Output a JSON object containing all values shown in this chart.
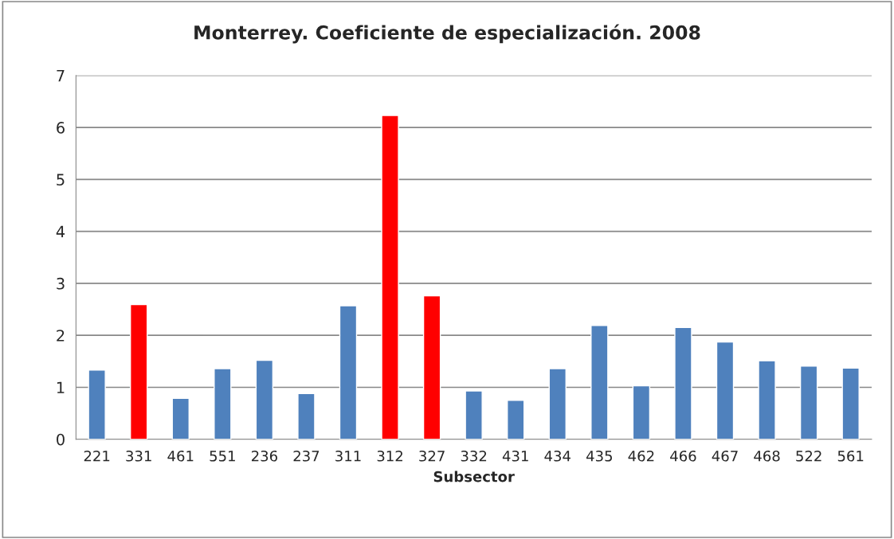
{
  "chart_data": {
    "type": "bar",
    "title": "Monterrey. Coeficiente de especialización. 2008",
    "xlabel": "Subsector",
    "categories": [
      "221",
      "331",
      "461",
      "551",
      "236",
      "237",
      "311",
      "312",
      "327",
      "332",
      "431",
      "434",
      "435",
      "462",
      "466",
      "467",
      "468",
      "522",
      "561"
    ],
    "values": [
      1.33,
      2.59,
      0.79,
      1.36,
      1.52,
      0.88,
      2.57,
      6.23,
      2.76,
      0.93,
      0.75,
      1.36,
      2.19,
      1.03,
      2.15,
      1.87,
      1.51,
      1.41,
      1.37
    ],
    "colors": [
      "#4f81bd",
      "#ff0000",
      "#4f81bd",
      "#4f81bd",
      "#4f81bd",
      "#4f81bd",
      "#4f81bd",
      "#ff0000",
      "#ff0000",
      "#4f81bd",
      "#4f81bd",
      "#4f81bd",
      "#4f81bd",
      "#4f81bd",
      "#4f81bd",
      "#4f81bd",
      "#4f81bd",
      "#4f81bd",
      "#4f81bd"
    ],
    "ylim": [
      0,
      7
    ],
    "yticks": [
      0,
      1,
      2,
      3,
      4,
      5,
      6,
      7
    ],
    "grid": "y",
    "legend": false
  }
}
